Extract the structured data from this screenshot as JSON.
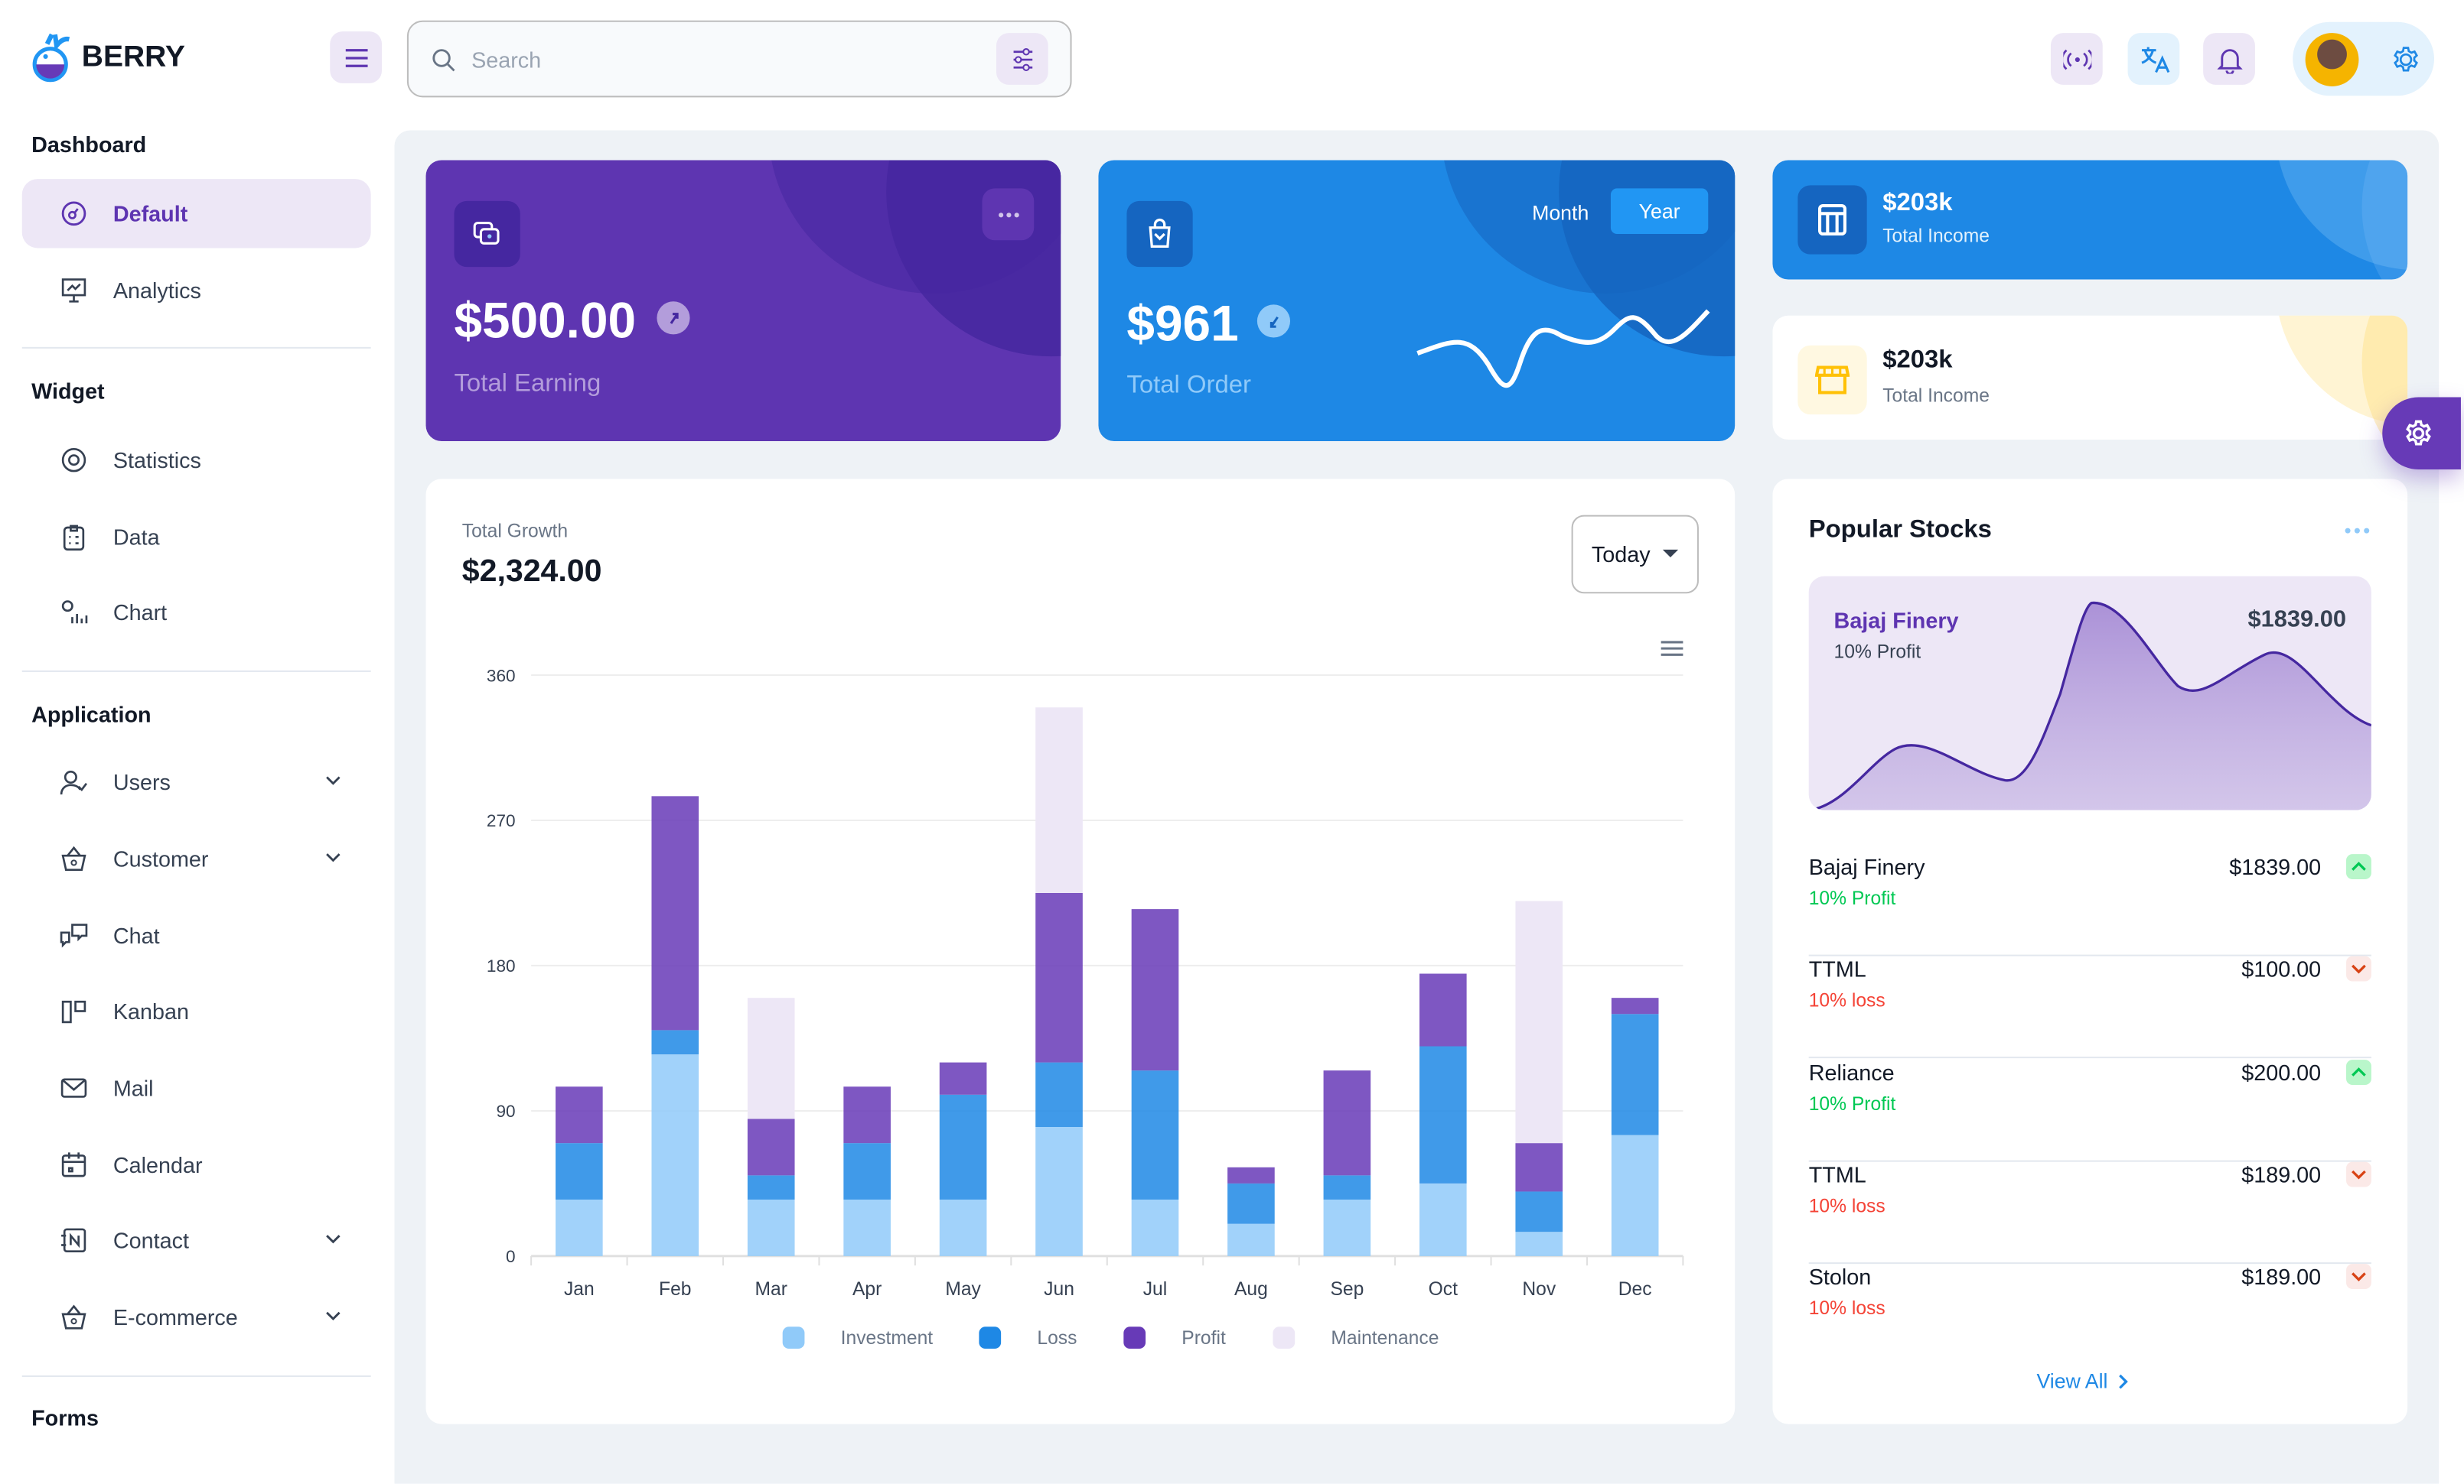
{
  "brand": {
    "name": "BERRY"
  },
  "search": {
    "placeholder": "Search"
  },
  "sidebar": {
    "groups": [
      {
        "title": "Dashboard",
        "items": [
          {
            "label": "Default",
            "active": true
          },
          {
            "label": "Analytics"
          }
        ]
      },
      {
        "title": "Widget",
        "items": [
          {
            "label": "Statistics"
          },
          {
            "label": "Data"
          },
          {
            "label": "Chart"
          }
        ]
      },
      {
        "title": "Application",
        "items": [
          {
            "label": "Users",
            "expandable": true
          },
          {
            "label": "Customer",
            "expandable": true
          },
          {
            "label": "Chat"
          },
          {
            "label": "Kanban"
          },
          {
            "label": "Mail"
          },
          {
            "label": "Calendar"
          },
          {
            "label": "Contact",
            "expandable": true
          },
          {
            "label": "E-commerce",
            "expandable": true
          }
        ]
      },
      {
        "title": "Forms",
        "items": []
      }
    ]
  },
  "earning": {
    "value": "$500.00",
    "label": "Total Earning"
  },
  "orders": {
    "value": "$961",
    "label": "Total Order",
    "tabs": [
      "Month",
      "Year"
    ],
    "active_tab": "Year"
  },
  "income_dark": {
    "value": "$203k",
    "label": "Total Income"
  },
  "income_light": {
    "value": "$203k",
    "label": "Total Income"
  },
  "growth": {
    "label": "Total Growth",
    "value": "$2,324.00",
    "period": "Today"
  },
  "chart_data": {
    "type": "bar",
    "stacked": true,
    "categories": [
      "Jan",
      "Feb",
      "Mar",
      "Apr",
      "May",
      "Jun",
      "Jul",
      "Aug",
      "Sep",
      "Oct",
      "Nov",
      "Dec"
    ],
    "series": [
      {
        "name": "Investment",
        "color": "#90caf9",
        "values": [
          35,
          125,
          35,
          35,
          35,
          80,
          35,
          20,
          35,
          45,
          15,
          75
        ]
      },
      {
        "name": "Loss",
        "color": "#1e88e5",
        "values": [
          35,
          15,
          15,
          35,
          65,
          40,
          80,
          25,
          15,
          85,
          25,
          75
        ]
      },
      {
        "name": "Profit",
        "color": "#673ab7",
        "values": [
          35,
          145,
          35,
          35,
          20,
          105,
          100,
          10,
          65,
          45,
          30,
          10
        ]
      },
      {
        "name": "Maintenance",
        "color": "#ede7f6",
        "values": [
          0,
          0,
          75,
          0,
          0,
          115,
          0,
          0,
          0,
          0,
          150,
          0
        ]
      }
    ],
    "yticks": [
      "0",
      "90",
      "180",
      "270",
      "360"
    ],
    "ylim": [
      0,
      360
    ],
    "grid": true,
    "legend": "bottom"
  },
  "stocks": {
    "title": "Popular Stocks",
    "featured": {
      "name": "Bajaj Finery",
      "sub": "10% Profit",
      "price": "$1839.00"
    },
    "rows": [
      {
        "name": "Bajaj Finery",
        "price": "$1839.00",
        "sub": "10% Profit",
        "trend": "up"
      },
      {
        "name": "TTML",
        "price": "$100.00",
        "sub": "10% loss",
        "trend": "down"
      },
      {
        "name": "Reliance",
        "price": "$200.00",
        "sub": "10% Profit",
        "trend": "up"
      },
      {
        "name": "TTML",
        "price": "$189.00",
        "sub": "10% loss",
        "trend": "down"
      },
      {
        "name": "Stolon",
        "price": "$189.00",
        "sub": "10% loss",
        "trend": "down"
      }
    ],
    "view_all": "View All"
  },
  "colors": {
    "primary": "#673ab7",
    "secondary": "#1e88e5",
    "success": "#00c853",
    "error": "#f44336",
    "warning": "#ffc107"
  }
}
